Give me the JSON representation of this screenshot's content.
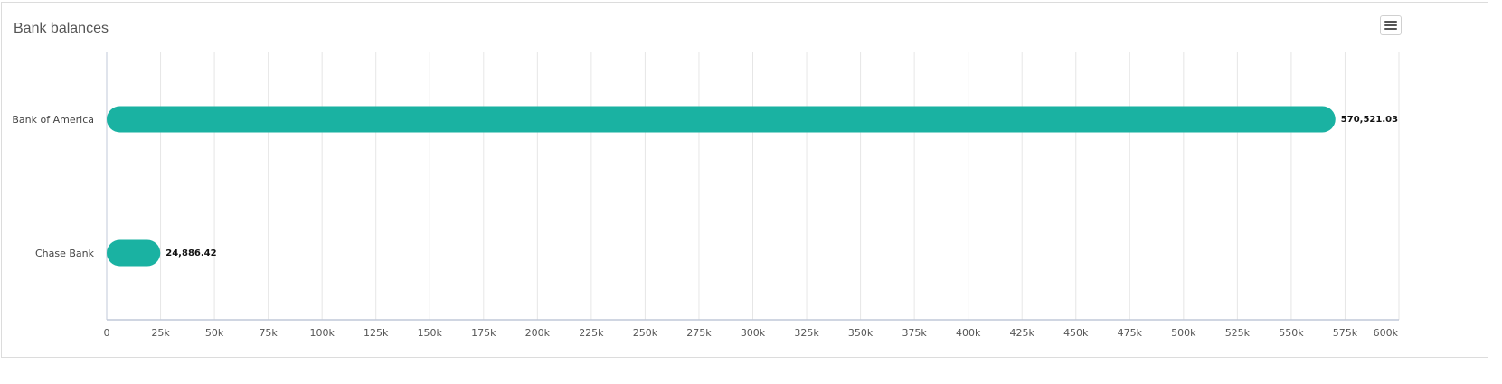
{
  "chart_data": {
    "type": "bar",
    "orientation": "horizontal",
    "title": "Bank balances",
    "categories": [
      "Bank of America",
      "Chase Bank"
    ],
    "values": [
      570521.03,
      24886.42
    ],
    "value_labels": [
      "570,521.03",
      "24,886.42"
    ],
    "xlim": [
      0,
      600000
    ],
    "x_ticks": [
      0,
      25000,
      50000,
      75000,
      100000,
      125000,
      150000,
      175000,
      200000,
      225000,
      250000,
      275000,
      300000,
      325000,
      350000,
      375000,
      400000,
      425000,
      450000,
      475000,
      500000,
      525000,
      550000,
      575000,
      600000
    ],
    "x_tick_labels": [
      "0",
      "25k",
      "50k",
      "75k",
      "100k",
      "125k",
      "150k",
      "175k",
      "200k",
      "225k",
      "250k",
      "275k",
      "300k",
      "325k",
      "350k",
      "375k",
      "400k",
      "425k",
      "450k",
      "475k",
      "500k",
      "525k",
      "550k",
      "575k",
      "600k"
    ],
    "grid": true,
    "bar_color": "#1ab2a2"
  },
  "toolbar": {
    "menu_icon": "hamburger-menu-icon"
  }
}
